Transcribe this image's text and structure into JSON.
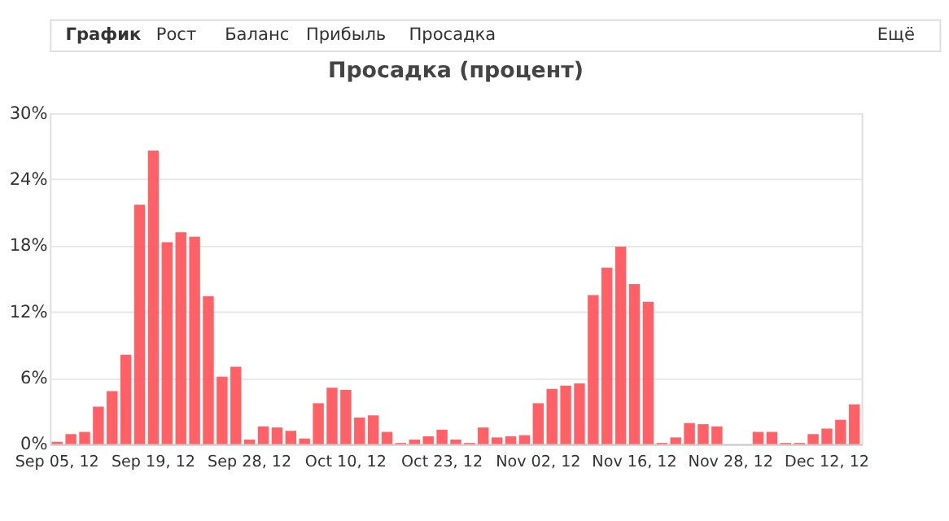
{
  "chart_data": {
    "type": "bar",
    "title": "Просадка (процент)",
    "annotations": [
      "График",
      "Рост",
      "Баланс",
      "Прибыль",
      "Просадка",
      "Ещё"
    ],
    "categories": [
      "Sep 05, 12",
      null,
      null,
      null,
      null,
      null,
      null,
      "Sep 19, 12",
      null,
      null,
      null,
      null,
      null,
      null,
      "Sep 28, 12",
      null,
      null,
      null,
      null,
      null,
      null,
      "Oct 10, 12",
      null,
      null,
      null,
      null,
      null,
      null,
      "Oct 23, 12",
      null,
      null,
      null,
      null,
      null,
      null,
      "Nov 02, 12",
      null,
      null,
      null,
      null,
      null,
      null,
      "Nov 16, 12",
      null,
      null,
      null,
      null,
      null,
      null,
      "Nov 28, 12",
      null,
      null,
      null,
      null,
      null,
      null,
      "Dec 12, 12",
      null,
      null
    ],
    "values": [
      0.2,
      0.9,
      1.1,
      3.4,
      4.8,
      8.1,
      21.7,
      26.6,
      18.3,
      19.2,
      18.8,
      13.4,
      6.1,
      7.0,
      0.4,
      1.6,
      1.5,
      1.2,
      0.5,
      3.7,
      5.1,
      4.9,
      2.4,
      2.6,
      1.1,
      0.1,
      0.4,
      0.7,
      1.3,
      0.4,
      0.1,
      1.5,
      0.6,
      0.7,
      0.8,
      3.7,
      5.0,
      5.3,
      5.5,
      13.5,
      16.0,
      17.9,
      14.5,
      12.9,
      0.1,
      0.6,
      1.9,
      1.8,
      1.6,
      0,
      0,
      1.1,
      1.1,
      0.1,
      0.1,
      0.9,
      1.4,
      2.2,
      3.6
    ],
    "color": "#ff595e",
    "ylim": [
      0,
      30
    ],
    "yticks": [
      {
        "value": 0,
        "label": "0%"
      },
      {
        "value": 6,
        "label": "6%"
      },
      {
        "value": 12,
        "label": "12%"
      },
      {
        "value": 18,
        "label": "18%"
      },
      {
        "value": 24,
        "label": "24%"
      },
      {
        "value": 30,
        "label": "30%"
      }
    ],
    "grid": "y"
  }
}
